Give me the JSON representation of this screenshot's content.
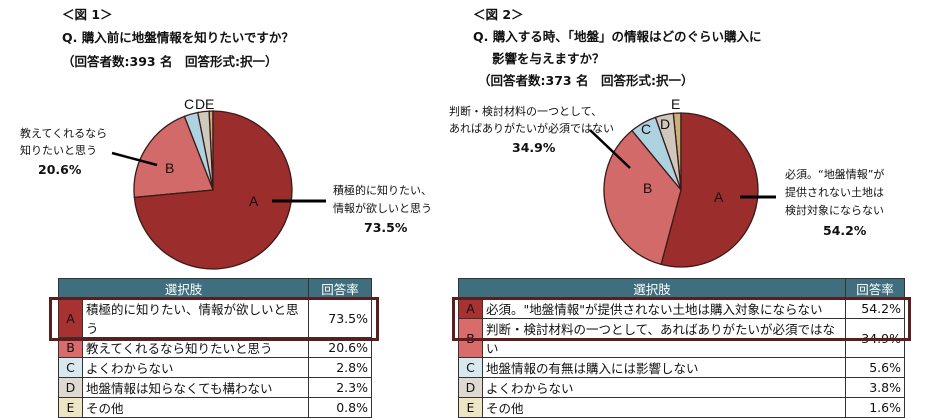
{
  "chart_data": [
    {
      "type": "pie",
      "figure_label": "＜図 1＞",
      "question": [
        "Q. 購入前に地盤情報を知りたいですか？"
      ],
      "meta": "（回答者数:393 名　回答形式:択一）",
      "slices": [
        {
          "key": "A",
          "label": "積極的に知りたい、情報が欲しいと思う",
          "value": 73.5,
          "color": "#9b2d2d"
        },
        {
          "key": "B",
          "label": "教えてくれるなら知りたいと思う",
          "value": 20.6,
          "color": "#d36a6a"
        },
        {
          "key": "C",
          "label": "よくわからない",
          "value": 2.8,
          "color": "#add3e0"
        },
        {
          "key": "D",
          "label": "地盤情報は知らなくても構わない",
          "value": 2.3,
          "color": "#cfc9bd"
        },
        {
          "key": "E",
          "label": "その他",
          "value": 0.8,
          "color": "#c8b27a"
        }
      ],
      "callouts": {
        "A": [
          "積極的に知りたい、",
          "情報が欲しいと思う",
          "73.5%"
        ],
        "B": [
          "教えてくれるなら",
          "知りたいと思う",
          "20.6%"
        ]
      },
      "table": {
        "headers": [
          "選択肢",
          "回答率"
        ],
        "rows": [
          [
            "A",
            "積極的に知りたい、情報が欲しいと思う",
            "73.5%"
          ],
          [
            "B",
            "教えてくれるなら知りたいと思う",
            "20.6%"
          ],
          [
            "C",
            "よくわからない",
            "2.8%"
          ],
          [
            "D",
            "地盤情報は知らなくても構わない",
            "2.3%"
          ],
          [
            "E",
            "その他",
            "0.8%"
          ]
        ]
      }
    },
    {
      "type": "pie",
      "figure_label": "＜図 2＞",
      "question": [
        "Q. 購入する時、「地盤」の情報はどのぐらい購入に",
        "影響を与えますか？"
      ],
      "meta": "（回答者数:373 名　回答形式:択一）",
      "slices": [
        {
          "key": "A",
          "label": "必須。\"地盤情報\"が提供されない土地は購入対象にならない",
          "value": 54.2,
          "color": "#9b2d2d"
        },
        {
          "key": "B",
          "label": "判断・検討材料の一つとして、あればありがたいが必須ではない",
          "value": 34.9,
          "color": "#d36a6a"
        },
        {
          "key": "C",
          "label": "地盤情報の有無は購入には影響しない",
          "value": 5.6,
          "color": "#add3e0"
        },
        {
          "key": "D",
          "label": "よくわからない",
          "value": 3.8,
          "color": "#cfc9bd"
        },
        {
          "key": "E",
          "label": "その他",
          "value": 1.6,
          "color": "#c8b27a"
        }
      ],
      "callouts": {
        "A": [
          "必須。“地盤情報”が",
          "提供されない土地は",
          "検討対象にならない",
          "54.2%"
        ],
        "B": [
          "判断・検討材料の一つとして、",
          "あればありがたいが必須ではない",
          "34.9%"
        ]
      },
      "table": {
        "headers": [
          "選択肢",
          "回答率"
        ],
        "rows": [
          [
            "A",
            "必須。\"地盤情報\"が提供されない土地は購入対象にならない",
            "54.2%"
          ],
          [
            "B",
            "判断・検討材料の一つとして、あればありがたいが必須ではない",
            "34.9%"
          ],
          [
            "C",
            "地盤情報の有無は購入には影響しない",
            "5.6%"
          ],
          [
            "D",
            "よくわからない",
            "3.8%"
          ],
          [
            "E",
            "その他",
            "1.6%"
          ]
        ]
      }
    }
  ],
  "cell_colors": {
    "A": "#a83232",
    "B": "#d96b6b",
    "C": "#d8e8ee",
    "D": "#dedad2",
    "E": "#eee5c5"
  }
}
